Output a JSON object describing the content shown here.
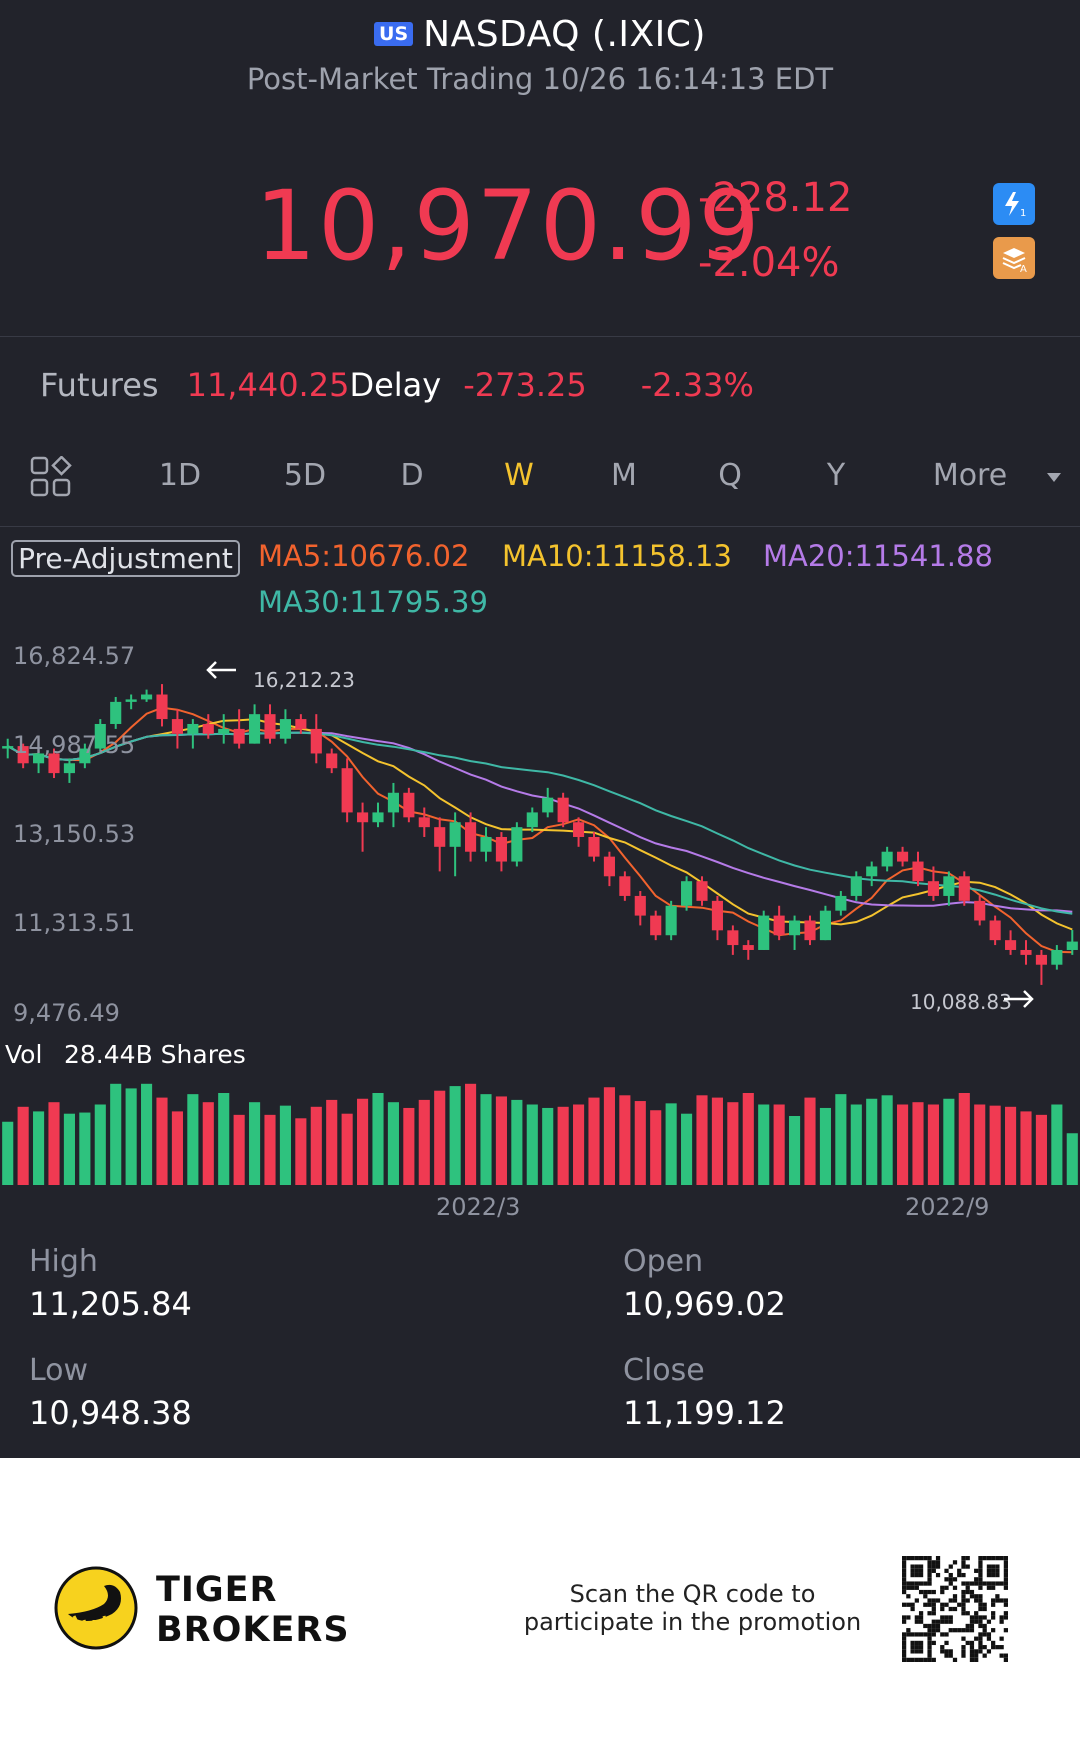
{
  "header": {
    "market_badge": "US",
    "title": "NASDAQ (.IXIC)",
    "subtitle": "Post-Market Trading 10/26 16:14:13 EDT"
  },
  "quote": {
    "price": "10,970.99",
    "change": "-228.12",
    "change_pct": "-2.04%",
    "color_down": "#f03a52"
  },
  "side_icons": [
    "flash-icon",
    "stack-icon"
  ],
  "futures": {
    "label": "Futures",
    "value": "11,440.25",
    "delay": "Delay",
    "change": "-273.25",
    "change_pct": "-2.33%"
  },
  "tabs": [
    {
      "label": "1D",
      "active": false
    },
    {
      "label": "5D",
      "active": false
    },
    {
      "label": "D",
      "active": false
    },
    {
      "label": "W",
      "active": true
    },
    {
      "label": "M",
      "active": false
    },
    {
      "label": "Q",
      "active": false
    },
    {
      "label": "Y",
      "active": false
    },
    {
      "label": "More",
      "active": false
    }
  ],
  "adjustment": "Pre-Adjustment",
  "ma": [
    {
      "label": "MA5:10676.02",
      "color": "#f2632e"
    },
    {
      "label": "MA10:11158.13",
      "color": "#f4c32e"
    },
    {
      "label": "MA20:11541.88",
      "color": "#b57be8"
    },
    {
      "label": "MA30:11795.39",
      "color": "#3fb8a6"
    }
  ],
  "chart": {
    "y_labels": [
      "16,824.57",
      "14,987.55",
      "13,150.53",
      "11,313.51",
      "9,476.49"
    ],
    "high_marker": "16,212.23",
    "low_marker": "10,088.83",
    "x_labels": [
      "2022/3",
      "2022/9"
    ],
    "volume_label": "Vol",
    "volume_value": "28.44B Shares",
    "up_color": "#2ec27e",
    "down_color": "#f03a52"
  },
  "chart_data": {
    "type": "candlestick",
    "ylim": [
      9476.49,
      16824.57
    ],
    "candles": [
      [
        14900,
        15100,
        14700,
        14950
      ],
      [
        14950,
        15000,
        14500,
        14600
      ],
      [
        14600,
        14850,
        14400,
        14800
      ],
      [
        14800,
        14900,
        14300,
        14400
      ],
      [
        14400,
        14700,
        14200,
        14600
      ],
      [
        14600,
        15000,
        14500,
        14900
      ],
      [
        14900,
        15500,
        14800,
        15400
      ],
      [
        15400,
        15950,
        15300,
        15850
      ],
      [
        15850,
        16000,
        15700,
        15900
      ],
      [
        15900,
        16100,
        15850,
        16000
      ],
      [
        16000,
        16212,
        15350,
        15500
      ],
      [
        15500,
        15700,
        14900,
        15200
      ],
      [
        15200,
        15500,
        14900,
        15400
      ],
      [
        15400,
        15600,
        15100,
        15200
      ],
      [
        15200,
        15600,
        15000,
        15300
      ],
      [
        15300,
        15700,
        14900,
        15000
      ],
      [
        15000,
        15800,
        15000,
        15600
      ],
      [
        15600,
        15800,
        15000,
        15100
      ],
      [
        15100,
        15700,
        15000,
        15500
      ],
      [
        15500,
        15600,
        15200,
        15300
      ],
      [
        15300,
        15600,
        14600,
        14800
      ],
      [
        14800,
        14900,
        14400,
        14500
      ],
      [
        14500,
        14700,
        13400,
        13600
      ],
      [
        13600,
        13800,
        12800,
        13400
      ],
      [
        13400,
        13800,
        13300,
        13600
      ],
      [
        13600,
        14200,
        13300,
        14000
      ],
      [
        14000,
        14100,
        13400,
        13500
      ],
      [
        13500,
        13700,
        13100,
        13300
      ],
      [
        13300,
        13500,
        12400,
        12900
      ],
      [
        12900,
        13600,
        12300,
        13400
      ],
      [
        13400,
        13600,
        12600,
        12800
      ],
      [
        12800,
        13300,
        12600,
        13100
      ],
      [
        13100,
        13200,
        12400,
        12600
      ],
      [
        12600,
        13400,
        12500,
        13300
      ],
      [
        13300,
        13700,
        13200,
        13600
      ],
      [
        13600,
        14100,
        13500,
        13900
      ],
      [
        13900,
        14000,
        13300,
        13400
      ],
      [
        13400,
        13500,
        12900,
        13100
      ],
      [
        13100,
        13200,
        12600,
        12700
      ],
      [
        12700,
        12800,
        12100,
        12300
      ],
      [
        12300,
        12400,
        11800,
        11900
      ],
      [
        11900,
        12000,
        11300,
        11500
      ],
      [
        11500,
        11600,
        11000,
        11100
      ],
      [
        11100,
        11800,
        11000,
        11700
      ],
      [
        11700,
        12300,
        11600,
        12200
      ],
      [
        12200,
        12300,
        11700,
        11800
      ],
      [
        11800,
        11900,
        11000,
        11200
      ],
      [
        11200,
        11300,
        10700,
        10900
      ],
      [
        10900,
        11000,
        10600,
        10800
      ],
      [
        10800,
        11600,
        10800,
        11500
      ],
      [
        11500,
        11700,
        11000,
        11100
      ],
      [
        11100,
        11500,
        10800,
        11400
      ],
      [
        11400,
        11500,
        10900,
        11000
      ],
      [
        11000,
        11700,
        11000,
        11600
      ],
      [
        11600,
        12000,
        11500,
        11900
      ],
      [
        11900,
        12400,
        11800,
        12300
      ],
      [
        12300,
        12600,
        12100,
        12500
      ],
      [
        12500,
        12900,
        12400,
        12800
      ],
      [
        12800,
        12900,
        12500,
        12600
      ],
      [
        12600,
        12800,
        12100,
        12200
      ],
      [
        12200,
        12500,
        11800,
        11900
      ],
      [
        11900,
        12400,
        11700,
        12300
      ],
      [
        12300,
        12400,
        11700,
        11800
      ],
      [
        11800,
        11900,
        11300,
        11400
      ],
      [
        11400,
        11500,
        10900,
        11000
      ],
      [
        11000,
        11200,
        10700,
        10800
      ],
      [
        10800,
        11000,
        10500,
        10700
      ],
      [
        10700,
        10800,
        10089,
        10500
      ],
      [
        10500,
        10900,
        10400,
        10800
      ],
      [
        10800,
        11206,
        10700,
        10971
      ]
    ],
    "volume": [
      55,
      68,
      64,
      72,
      62,
      63,
      70,
      88,
      84,
      88,
      76,
      64,
      79,
      72,
      80,
      61,
      72,
      61,
      69,
      58,
      68,
      74,
      62,
      75,
      80,
      72,
      67,
      74,
      82,
      86,
      88,
      79,
      77,
      74,
      70,
      67,
      68,
      70,
      76,
      85,
      78,
      73,
      65,
      71,
      62,
      78,
      76,
      72,
      80,
      70,
      70,
      60,
      76,
      67,
      79,
      70,
      75,
      78,
      70,
      72,
      70,
      75,
      80,
      70,
      69,
      68,
      64,
      61,
      70,
      45
    ]
  },
  "stats": {
    "high_label": "High",
    "high_value": "11,205.84",
    "open_label": "Open",
    "open_value": "10,969.02",
    "low_label": "Low",
    "low_value": "10,948.38",
    "close_label": "Close",
    "close_value": "11,199.12"
  },
  "footer": {
    "brand_line1": "TIGER",
    "brand_line2": "BROKERS",
    "promo_line1": "Scan the QR code to",
    "promo_line2": "participate in the promotion"
  }
}
